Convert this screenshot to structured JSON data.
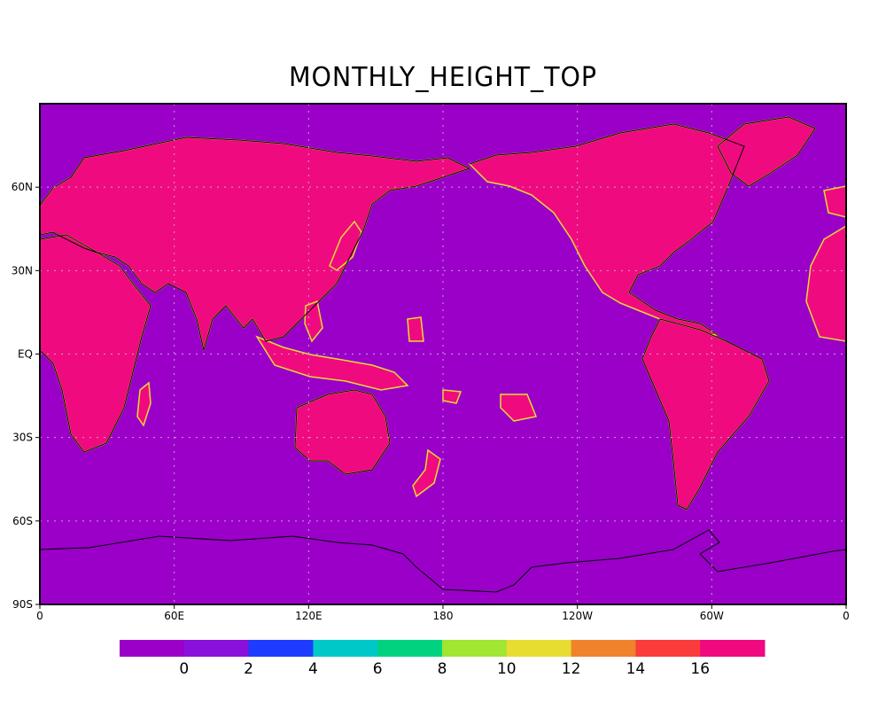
{
  "map": {
    "title": "MONTHLY_HEIGHT_TOP",
    "projection": "cylindrical equidistant",
    "center_longitude": "180",
    "colors": {
      "ocean": "#9a00c8",
      "land": "#f00a80",
      "coastline": "#000000",
      "grid": "#c8a0dc"
    },
    "lat_ticks": [
      {
        "label": "60N",
        "lat": 60
      },
      {
        "label": "30N",
        "lat": 30
      },
      {
        "label": "EQ",
        "lat": 0
      },
      {
        "label": "30S",
        "lat": -30
      },
      {
        "label": "60S",
        "lat": -60
      },
      {
        "label": "90S",
        "lat": -90
      }
    ],
    "lon_ticks": [
      {
        "label": "0",
        "lon": 0
      },
      {
        "label": "60E",
        "lon": 60
      },
      {
        "label": "120E",
        "lon": 120
      },
      {
        "label": "180",
        "lon": 180
      },
      {
        "label": "120W",
        "lon": 240
      },
      {
        "label": "60W",
        "lon": 300
      },
      {
        "label": "0",
        "lon": 360
      }
    ]
  },
  "colorbar": {
    "colors": [
      "#9a00c8",
      "#8a10dc",
      "#1e3cff",
      "#00c8c8",
      "#00d282",
      "#a0e632",
      "#e6dc32",
      "#f0822c",
      "#fa3c3c",
      "#f00a80"
    ],
    "labels": [
      "0",
      "2",
      "4",
      "6",
      "8",
      "10",
      "12",
      "14",
      "16"
    ]
  }
}
